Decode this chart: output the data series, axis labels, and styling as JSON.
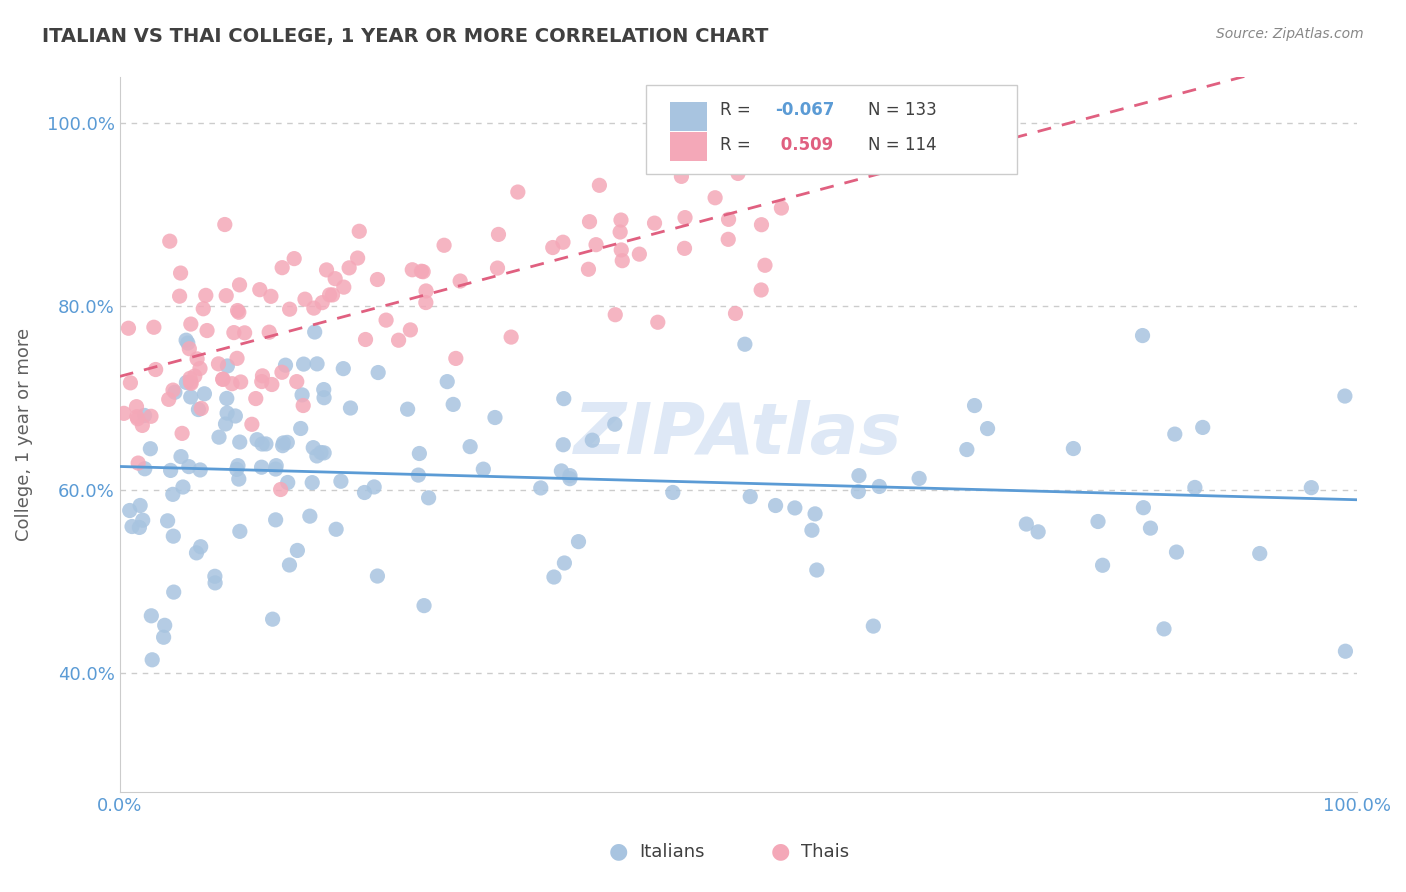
{
  "title": "ITALIAN VS THAI COLLEGE, 1 YEAR OR MORE CORRELATION CHART",
  "source": "Source: ZipAtlas.com",
  "ylabel": "College, 1 year or more",
  "xlim": [
    0.0,
    1.0
  ],
  "ylim": [
    0.27,
    1.05
  ],
  "italian_R": -0.067,
  "italian_N": 133,
  "thai_R": 0.509,
  "thai_N": 114,
  "italian_color": "#a8c4e0",
  "thai_color": "#f4a8b8",
  "italian_line_color": "#5b9bd5",
  "thai_line_color": "#e06080",
  "background_color": "#ffffff",
  "grid_color": "#cccccc",
  "watermark_color": "#c8daf0",
  "title_color": "#404040",
  "title_fontsize": 14,
  "axis_label_color": "#606060",
  "tick_label_color": "#5b9bd5"
}
